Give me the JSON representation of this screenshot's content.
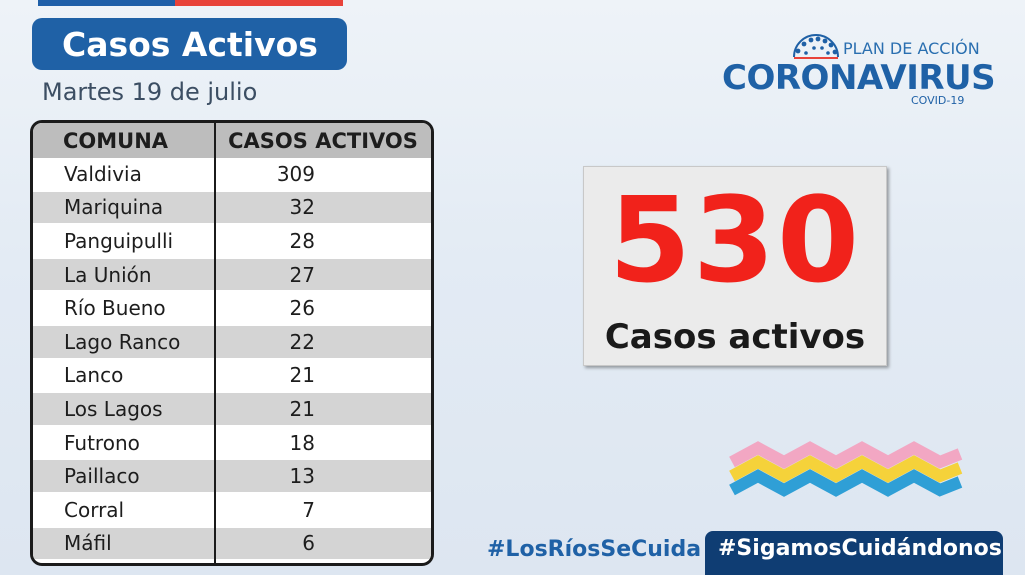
{
  "header": {
    "title": "Casos Activos",
    "date": "Martes 19 de julio"
  },
  "logo": {
    "plan": "PLAN DE ACCIÓN",
    "name": "CORONAVIRUS",
    "sub": "COVID-19"
  },
  "table": {
    "headers": [
      "COMUNA",
      "CASOS ACTIVOS"
    ],
    "rows": [
      {
        "comuna": "Valdivia",
        "casos": "309"
      },
      {
        "comuna": "Mariquina",
        "casos": "32"
      },
      {
        "comuna": "Panguipulli",
        "casos": "28"
      },
      {
        "comuna": "La Unión",
        "casos": "27"
      },
      {
        "comuna": "Río Bueno",
        "casos": "26"
      },
      {
        "comuna": "Lago Ranco",
        "casos": "22"
      },
      {
        "comuna": "Lanco",
        "casos": "21"
      },
      {
        "comuna": "Los Lagos",
        "casos": "21"
      },
      {
        "comuna": "Futrono",
        "casos": "18"
      },
      {
        "comuna": "Paillaco",
        "casos": "13"
      },
      {
        "comuna": "Corral",
        "casos": "7"
      },
      {
        "comuna": "Máfil",
        "casos": "6"
      }
    ]
  },
  "total": {
    "value": "530",
    "label": "Casos activos"
  },
  "hashtags": [
    "#LosRíosSeCuida",
    "#SigamosCuidándonos"
  ],
  "colors": {
    "brand_blue": "#1f61a6",
    "navy": "#0f3d73",
    "accent_red": "#f1221b",
    "row_gray": "#d4d4d4",
    "header_gray": "#bdbdbd"
  }
}
